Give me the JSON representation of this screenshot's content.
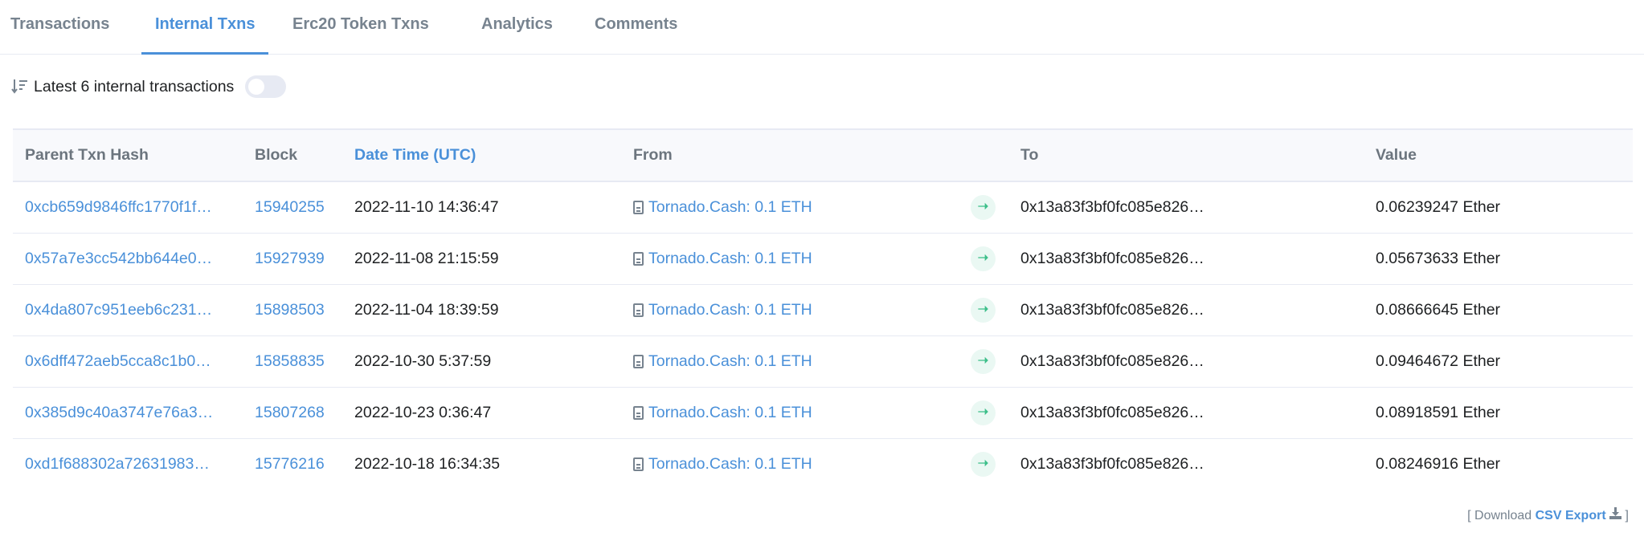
{
  "tabs": [
    {
      "label": "Transactions",
      "active": false
    },
    {
      "label": "Internal Txns",
      "active": true
    },
    {
      "label": "Erc20 Token Txns",
      "active": false
    },
    {
      "label": "Analytics",
      "active": false
    },
    {
      "label": "Comments",
      "active": false
    }
  ],
  "filter": {
    "icon": "sort-descending-icon",
    "label": "Latest 6 internal transactions",
    "toggle_on": false
  },
  "table": {
    "headers": [
      "Parent Txn Hash",
      "Block",
      "Date Time (UTC)",
      "From",
      "To",
      "Value"
    ],
    "rows": [
      {
        "hash": "0xcb659d9846ffc1770f1f…",
        "block": "15940255",
        "datetime": "2022-11-10 14:36:47",
        "from": "Tornado.Cash: 0.1 ETH",
        "to": "0x13a83f3bf0fc085e826…",
        "value": "0.06239247 Ether"
      },
      {
        "hash": "0x57a7e3cc542bb644e0…",
        "block": "15927939",
        "datetime": "2022-11-08 21:15:59",
        "from": "Tornado.Cash: 0.1 ETH",
        "to": "0x13a83f3bf0fc085e826…",
        "value": "0.05673633 Ether"
      },
      {
        "hash": "0x4da807c951eeb6c231…",
        "block": "15898503",
        "datetime": "2022-11-04 18:39:59",
        "from": "Tornado.Cash: 0.1 ETH",
        "to": "0x13a83f3bf0fc085e826…",
        "value": "0.08666645 Ether"
      },
      {
        "hash": "0x6dff472aeb5cca8c1b0…",
        "block": "15858835",
        "datetime": "2022-10-30 5:37:59",
        "from": "Tornado.Cash: 0.1 ETH",
        "to": "0x13a83f3bf0fc085e826…",
        "value": "0.09464672 Ether"
      },
      {
        "hash": "0x385d9c40a3747e76a3…",
        "block": "15807268",
        "datetime": "2022-10-23 0:36:47",
        "from": "Tornado.Cash: 0.1 ETH",
        "to": "0x13a83f3bf0fc085e826…",
        "value": "0.08918591 Ether"
      },
      {
        "hash": "0xd1f688302a72631983…",
        "block": "15776216",
        "datetime": "2022-10-18 16:34:35",
        "from": "Tornado.Cash: 0.1 ETH",
        "to": "0x13a83f3bf0fc085e826…",
        "value": "0.08246916 Ether"
      }
    ]
  },
  "footer": {
    "open_bracket": "[ Download",
    "link": "CSV Export",
    "close_bracket": "]",
    "icon": "download-icon"
  },
  "colors": {
    "accent": "#4a90d9",
    "arrow": "#3dbf8a"
  }
}
